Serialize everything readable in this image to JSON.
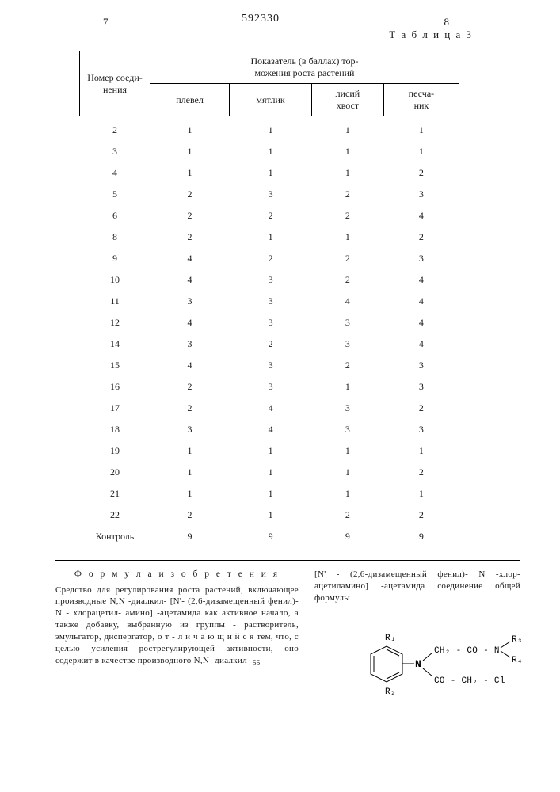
{
  "header": {
    "page_left": "7",
    "doc_number": "592330",
    "page_right": "8",
    "table_label": "Т а б л и ц а 3"
  },
  "table": {
    "row_header": "Номер соеди-\nнения",
    "group_header": "Показатель (в баллах) тор-\nможения роста растений",
    "columns": [
      "плевел",
      "мятлик",
      "лисий\nхвост",
      "песча-\nник"
    ],
    "rows": [
      {
        "id": "2",
        "v": [
          "1",
          "1",
          "1",
          "1"
        ]
      },
      {
        "id": "3",
        "v": [
          "1",
          "1",
          "1",
          "1"
        ]
      },
      {
        "id": "4",
        "v": [
          "1",
          "1",
          "1",
          "2"
        ]
      },
      {
        "id": "5",
        "v": [
          "2",
          "3",
          "2",
          "3"
        ]
      },
      {
        "id": "6",
        "v": [
          "2",
          "2",
          "2",
          "4"
        ]
      },
      {
        "id": "8",
        "v": [
          "2",
          "1",
          "1",
          "2"
        ]
      },
      {
        "id": "9",
        "v": [
          "4",
          "2",
          "2",
          "3"
        ]
      },
      {
        "id": "10",
        "v": [
          "4",
          "3",
          "2",
          "4"
        ]
      },
      {
        "id": "11",
        "v": [
          "3",
          "3",
          "4",
          "4"
        ]
      },
      {
        "id": "12",
        "v": [
          "4",
          "3",
          "3",
          "4"
        ]
      },
      {
        "id": "14",
        "v": [
          "3",
          "2",
          "3",
          "4"
        ]
      },
      {
        "id": "15",
        "v": [
          "4",
          "3",
          "2",
          "3"
        ]
      },
      {
        "id": "16",
        "v": [
          "2",
          "3",
          "1",
          "3"
        ]
      },
      {
        "id": "17",
        "v": [
          "2",
          "4",
          "3",
          "2"
        ]
      },
      {
        "id": "18",
        "v": [
          "3",
          "4",
          "3",
          "3"
        ]
      },
      {
        "id": "19",
        "v": [
          "1",
          "1",
          "1",
          "1"
        ]
      },
      {
        "id": "20",
        "v": [
          "1",
          "1",
          "1",
          "2"
        ]
      },
      {
        "id": "21",
        "v": [
          "1",
          "1",
          "1",
          "1"
        ]
      },
      {
        "id": "22",
        "v": [
          "2",
          "1",
          "2",
          "2"
        ]
      },
      {
        "id": "Контроль",
        "v": [
          "9",
          "9",
          "9",
          "9"
        ]
      }
    ]
  },
  "claims": {
    "title": "Ф о р м у л а   и з о б р е т е н и я",
    "left_text": "Средство для регулирования роста растений, включающее производные N,N -диалкил- [N'- (2,6-дизамещенный фенил)- N - хлорацетил- амино] -ацетамида как активное начало, а также добавку, выбранную из группы - растворитель, эмульгатор, диспергатор, о т - л и ч а ю щ и й с я  тем, что, с целью усиления рострегулирующей активности, оно содержит в качестве производного N,N -диалкил-",
    "right_text": "[N' - (2,6-дизамещенный фенил)- N -хлор-ацетиламино] -ацетамида соединение общей формулы",
    "line_mark": "55"
  },
  "chem": {
    "r1": "R₁",
    "r2": "R₂",
    "r3": "R₃",
    "r4": "R₄",
    "frag_top": "CH₂ - CO - N",
    "frag_bot": "CO - CH₂ - Cl",
    "n": "N"
  }
}
